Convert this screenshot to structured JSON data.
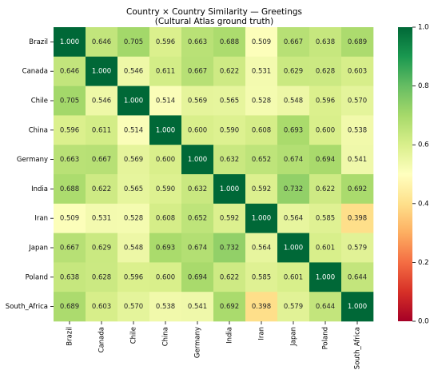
{
  "chart_data": {
    "type": "heatmap",
    "title": "Country × Country Similarity — Greetings",
    "subtitle": "(Cultural Atlas ground truth)",
    "rows": [
      "Brazil",
      "Canada",
      "Chile",
      "China",
      "Germany",
      "India",
      "Iran",
      "Japan",
      "Poland",
      "South_Africa"
    ],
    "columns": [
      "Brazil",
      "Canada",
      "Chile",
      "China",
      "Germany",
      "India",
      "Iran",
      "Japan",
      "Poland",
      "South_Africa"
    ],
    "values": [
      [
        1.0,
        0.646,
        0.705,
        0.596,
        0.663,
        0.688,
        0.509,
        0.667,
        0.638,
        0.689
      ],
      [
        0.646,
        1.0,
        0.546,
        0.611,
        0.667,
        0.622,
        0.531,
        0.629,
        0.628,
        0.603
      ],
      [
        0.705,
        0.546,
        1.0,
        0.514,
        0.569,
        0.565,
        0.528,
        0.548,
        0.596,
        0.57
      ],
      [
        0.596,
        0.611,
        0.514,
        1.0,
        0.6,
        0.59,
        0.608,
        0.693,
        0.6,
        0.538
      ],
      [
        0.663,
        0.667,
        0.569,
        0.6,
        1.0,
        0.632,
        0.652,
        0.674,
        0.694,
        0.541
      ],
      [
        0.688,
        0.622,
        0.565,
        0.59,
        0.632,
        1.0,
        0.592,
        0.732,
        0.622,
        0.692
      ],
      [
        0.509,
        0.531,
        0.528,
        0.608,
        0.652,
        0.592,
        1.0,
        0.564,
        0.585,
        0.398
      ],
      [
        0.667,
        0.629,
        0.548,
        0.693,
        0.674,
        0.732,
        0.564,
        1.0,
        0.601,
        0.579
      ],
      [
        0.638,
        0.628,
        0.596,
        0.6,
        0.694,
        0.622,
        0.585,
        0.601,
        1.0,
        0.644
      ],
      [
        0.689,
        0.603,
        0.57,
        0.538,
        0.541,
        0.692,
        0.398,
        0.579,
        0.644,
        1.0
      ]
    ],
    "value_labels": [
      [
        "1.000",
        "0.646",
        "0.705",
        "0.596",
        "0.663",
        "0.688",
        "0.509",
        "0.667",
        "0.638",
        "0.689"
      ],
      [
        "0.646",
        "1.000",
        "0.546",
        "0.611",
        "0.667",
        "0.622",
        "0.531",
        "0.629",
        "0.628",
        "0.603"
      ],
      [
        "0.705",
        "0.546",
        "1.000",
        "0.514",
        "0.569",
        "0.565",
        "0.528",
        "0.548",
        "0.596",
        "0.570"
      ],
      [
        "0.596",
        "0.611",
        "0.514",
        "1.000",
        "0.600",
        "0.590",
        "0.608",
        "0.693",
        "0.600",
        "0.538"
      ],
      [
        "0.663",
        "0.667",
        "0.569",
        "0.600",
        "1.000",
        "0.632",
        "0.652",
        "0.674",
        "0.694",
        "0.541"
      ],
      [
        "0.688",
        "0.622",
        "0.565",
        "0.590",
        "0.632",
        "1.000",
        "0.592",
        "0.732",
        "0.622",
        "0.692"
      ],
      [
        "0.509",
        "0.531",
        "0.528",
        "0.608",
        "0.652",
        "0.592",
        "1.000",
        "0.564",
        "0.585",
        "0.398"
      ],
      [
        "0.667",
        "0.629",
        "0.548",
        "0.693",
        "0.674",
        "0.732",
        "0.564",
        "1.000",
        "0.601",
        "0.579"
      ],
      [
        "0.638",
        "0.628",
        "0.596",
        "0.600",
        "0.694",
        "0.622",
        "0.585",
        "0.601",
        "1.000",
        "0.644"
      ],
      [
        "0.689",
        "0.603",
        "0.570",
        "0.538",
        "0.541",
        "0.692",
        "0.398",
        "0.579",
        "0.644",
        "1.000"
      ]
    ],
    "colormap": [
      "#a50026",
      "#d73027",
      "#f46d43",
      "#fdae61",
      "#fee08b",
      "#ffffbf",
      "#d9ef8b",
      "#a6d96a",
      "#66bd63",
      "#1a9850",
      "#006837"
    ],
    "clim": [
      0,
      1
    ],
    "cticks": [
      {
        "value": 0,
        "label": "0.0"
      },
      0.2,
      0.4,
      0.6,
      0.8,
      {
        "value": 1,
        "label": "1.0"
      }
    ]
  }
}
